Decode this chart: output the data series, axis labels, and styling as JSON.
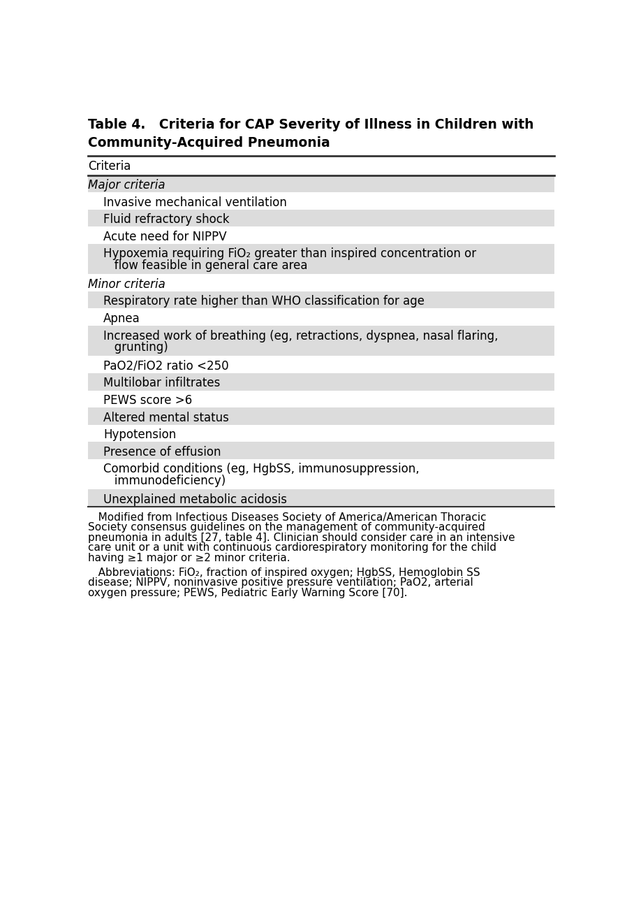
{
  "title_line1": "Table 4.   Criteria for CAP Severity of Illness in Children with",
  "title_line2": "Community-Acquired Pneumonia",
  "col_header": "Criteria",
  "bg_color": "#ffffff",
  "shaded_color": "#dcdcdc",
  "rows": [
    {
      "text": "Major criteria",
      "indent": 0,
      "shaded": true,
      "is_section": true,
      "lines": [
        "Major criteria"
      ]
    },
    {
      "text": "Invasive mechanical ventilation",
      "indent": 1,
      "shaded": false,
      "is_section": false,
      "lines": [
        "Invasive mechanical ventilation"
      ]
    },
    {
      "text": "Fluid refractory shock",
      "indent": 1,
      "shaded": true,
      "is_section": false,
      "lines": [
        "Fluid refractory shock"
      ]
    },
    {
      "text": "Acute need for NIPPV",
      "indent": 1,
      "shaded": false,
      "is_section": false,
      "lines": [
        "Acute need for NIPPV"
      ]
    },
    {
      "text": "Hypoxemia requiring FiO₂ greater than inspired concentration or flow feasible in general care area",
      "indent": 1,
      "shaded": true,
      "is_section": false,
      "lines": [
        "Hypoxemia requiring FiO₂ greater than inspired concentration or",
        "   flow feasible in general care area"
      ]
    },
    {
      "text": "Minor criteria",
      "indent": 0,
      "shaded": false,
      "is_section": true,
      "lines": [
        "Minor criteria"
      ]
    },
    {
      "text": "Respiratory rate higher than WHO classification for age",
      "indent": 1,
      "shaded": true,
      "is_section": false,
      "lines": [
        "Respiratory rate higher than WHO classification for age"
      ]
    },
    {
      "text": "Apnea",
      "indent": 1,
      "shaded": false,
      "is_section": false,
      "lines": [
        "Apnea"
      ]
    },
    {
      "text": "Increased work of breathing (eg, retractions, dyspnea, nasal flaring, grunting)",
      "indent": 1,
      "shaded": true,
      "is_section": false,
      "lines": [
        "Increased work of breathing (eg, retractions, dyspnea, nasal flaring,",
        "   grunting)"
      ]
    },
    {
      "text": "PaO2/FiO2 ratio <250",
      "indent": 1,
      "shaded": false,
      "is_section": false,
      "lines": [
        "PaO2/FiO2 ratio <250"
      ]
    },
    {
      "text": "Multilobar infiltrates",
      "indent": 1,
      "shaded": true,
      "is_section": false,
      "lines": [
        "Multilobar infiltrates"
      ]
    },
    {
      "text": "PEWS score >6",
      "indent": 1,
      "shaded": false,
      "is_section": false,
      "lines": [
        "PEWS score >6"
      ]
    },
    {
      "text": "Altered mental status",
      "indent": 1,
      "shaded": true,
      "is_section": false,
      "lines": [
        "Altered mental status"
      ]
    },
    {
      "text": "Hypotension",
      "indent": 1,
      "shaded": false,
      "is_section": false,
      "lines": [
        "Hypotension"
      ]
    },
    {
      "text": "Presence of effusion",
      "indent": 1,
      "shaded": true,
      "is_section": false,
      "lines": [
        "Presence of effusion"
      ]
    },
    {
      "text": "Comorbid conditions (eg, HgbSS, immunosuppression, immunodeficiency)",
      "indent": 1,
      "shaded": false,
      "is_section": false,
      "lines": [
        "Comorbid conditions (eg, HgbSS, immunosuppression,",
        "   immunodeficiency)"
      ]
    },
    {
      "text": "Unexplained metabolic acidosis",
      "indent": 1,
      "shaded": true,
      "is_section": false,
      "lines": [
        "Unexplained metabolic acidosis"
      ]
    }
  ],
  "footer_lines": [
    "   Modified from Infectious Diseases Society of America/American Thoracic",
    "Society consensus guidelines on the management of community-acquired",
    "pneumonia in adults [27, table 4]. Clinician should consider care in an intensive",
    "care unit or a unit with continuous cardiorespiratory monitoring for the child",
    "having ≥1 major or ≥2 minor criteria."
  ],
  "abbrev_lines": [
    "   Abbreviations: FiO₂, fraction of inspired oxygen; HgbSS, Hemoglobin SS",
    "disease; NIPPV, noninvasive positive pressure ventilation; PaO2, arterial",
    "oxygen pressure; PEWS, Pediatric Early Warning Score [70]."
  ],
  "title_fontsize": 13.5,
  "body_fontsize": 12.0,
  "footer_fontsize": 11.0
}
